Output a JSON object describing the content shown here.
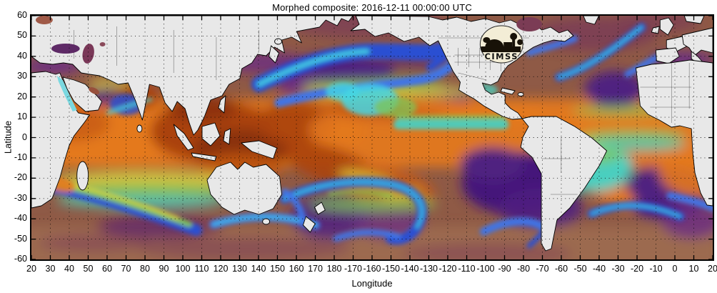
{
  "title": "Morphed composite: 2016-12-11 00:00:00 UTC",
  "axes": {
    "xlabel": "Longitude",
    "ylabel": "Latitude",
    "x_ticks": [
      "20",
      "30",
      "40",
      "50",
      "60",
      "70",
      "80",
      "90",
      "100",
      "110",
      "120",
      "130",
      "140",
      "150",
      "160",
      "170",
      "180",
      "-170",
      "-160",
      "-150",
      "-140",
      "-130",
      "-120",
      "-110",
      "-100",
      "-90",
      "-80",
      "-70",
      "-60",
      "-50",
      "-40",
      "-30",
      "-20",
      "-10",
      "0",
      "10",
      "20"
    ],
    "y_ticks": [
      "60",
      "50",
      "40",
      "30",
      "20",
      "10",
      "0",
      "-10",
      "-20",
      "-30",
      "-40",
      "-50",
      "-60"
    ]
  },
  "logo": {
    "text": "CIMSS"
  },
  "chart_data": {
    "type": "heatmap",
    "title": "Morphed composite: 2016-12-11 00:00:00 UTC",
    "datetime_utc": "2016-12-11 00:00:00",
    "xlabel": "Longitude",
    "ylabel": "Latitude",
    "x_axis": {
      "start_deg_east": 20,
      "wraps_through": 180,
      "end_deg_east": 20,
      "tick_step_deg": 10
    },
    "y_axis": {
      "min_deg": -60,
      "max_deg": 60,
      "tick_step_deg": 10
    },
    "grid": "dotted 10-degree lat/lon graticule, inward ticks on all four sides",
    "field": "morphed satellite water-vapor composite over oceans; land masses masked light gray with black coast/country borders",
    "value_encoding": "brown = dry high latitudes, purple/violet = subtropical dry zones (SE Pacific, S Atlantic, Arabian Sea, NE Atlantic, Mediterranean), blue/cyan filaments = storm tracks and moisture plumes, green-yellow = moderate moisture, orange to dark red-brown = very moist deep tropics (Indian Ocean, Maritime Continent, ITCZ, SPCZ)"
  },
  "colors": {
    "background": "#ffffff",
    "frame": "#000000",
    "grid": "#000000",
    "land": "#e8e8e8",
    "coastline": "#000000",
    "logo": {
      "disc": "#f3edd6",
      "ink": "#181208"
    },
    "field": {
      "base": "#8f5a46",
      "south": "#9c6a50",
      "maroon": "#7b3c55",
      "purple": "#4f2180",
      "purpledark": "#45197a",
      "violet": "#6b2d84",
      "blue": "#2a50d2",
      "blue2": "#3f74e6",
      "cyan": "#45d6e4",
      "teal": "#49cfc0",
      "green": "#7fc456",
      "yellow": "#ddd23e",
      "orange": "#e4791d",
      "orange2": "#c55a14",
      "red": "#aa430f",
      "red2": "#8a3008"
    }
  }
}
